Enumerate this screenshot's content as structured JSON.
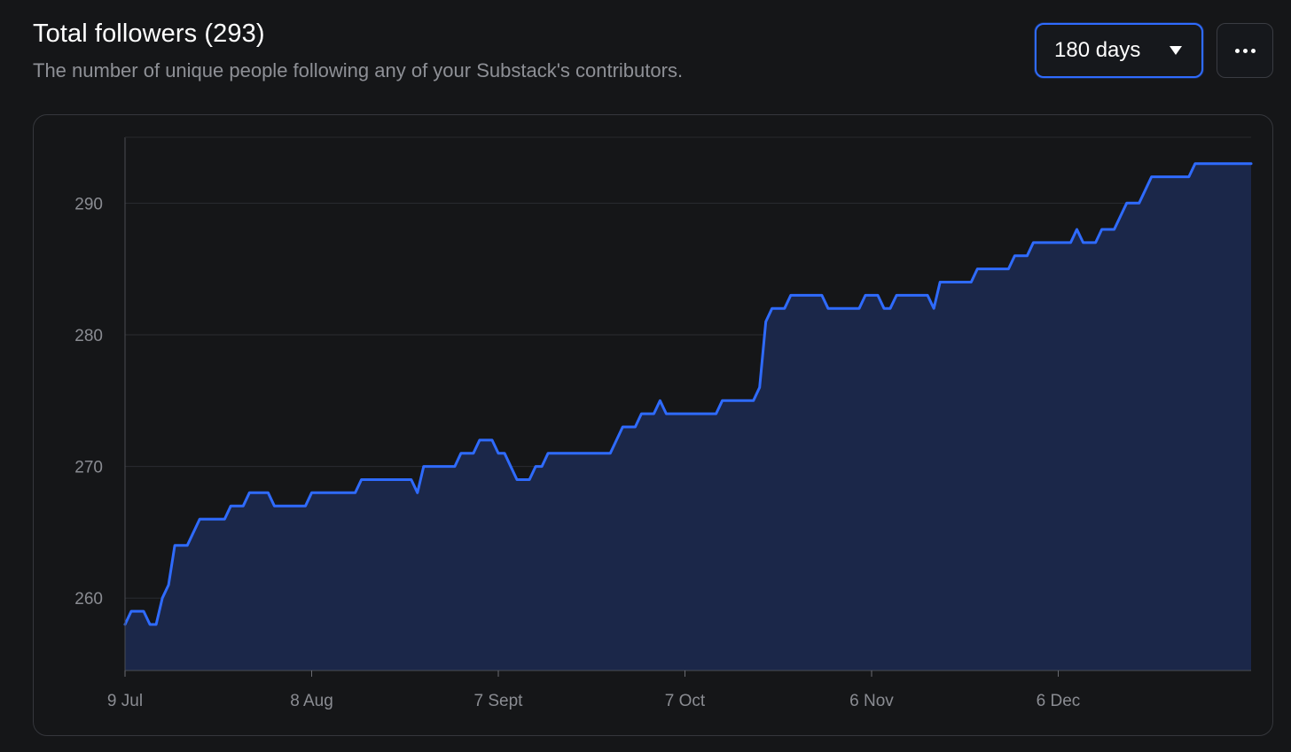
{
  "header": {
    "title": "Total followers (293)",
    "subtitle": "The number of unique people following any of your Substack's contributors."
  },
  "controls": {
    "range_label": "180 days",
    "range_icon": "chevron-down-icon",
    "more_icon": "more-horizontal-icon"
  },
  "colors": {
    "line": "#2f6bff",
    "area": "#1b2749",
    "grid": "#2a2c31",
    "background": "#151618"
  },
  "chart_data": {
    "type": "area",
    "title": "",
    "xlabel": "",
    "ylabel": "",
    "ylim": [
      254.5,
      295
    ],
    "yticks": [
      260,
      270,
      280,
      290
    ],
    "xlim": [
      "2024-07-09",
      "2025-01-06"
    ],
    "xticks": [
      {
        "date": "2024-07-09",
        "label": "9 Jul"
      },
      {
        "date": "2024-08-08",
        "label": "8 Aug"
      },
      {
        "date": "2024-09-07",
        "label": "7 Sept"
      },
      {
        "date": "2024-10-07",
        "label": "7 Oct"
      },
      {
        "date": "2024-11-06",
        "label": "6 Nov"
      },
      {
        "date": "2024-12-06",
        "label": "6 Dec"
      }
    ],
    "grid": true,
    "legend": "none",
    "series": [
      {
        "values": [
          [
            "2024-07-09",
            258
          ],
          [
            "2024-07-10",
            259
          ],
          [
            "2024-07-12",
            259
          ],
          [
            "2024-07-13",
            258
          ],
          [
            "2024-07-14",
            258
          ],
          [
            "2024-07-15",
            260
          ],
          [
            "2024-07-16",
            261
          ],
          [
            "2024-07-17",
            264
          ],
          [
            "2024-07-19",
            264
          ],
          [
            "2024-07-21",
            266
          ],
          [
            "2024-07-25",
            266
          ],
          [
            "2024-07-26",
            267
          ],
          [
            "2024-07-28",
            267
          ],
          [
            "2024-07-29",
            268
          ],
          [
            "2024-08-01",
            268
          ],
          [
            "2024-08-02",
            267
          ],
          [
            "2024-08-07",
            267
          ],
          [
            "2024-08-08",
            268
          ],
          [
            "2024-08-15",
            268
          ],
          [
            "2024-08-16",
            269
          ],
          [
            "2024-08-24",
            269
          ],
          [
            "2024-08-25",
            268
          ],
          [
            "2024-08-26",
            270
          ],
          [
            "2024-08-31",
            270
          ],
          [
            "2024-09-01",
            271
          ],
          [
            "2024-09-03",
            271
          ],
          [
            "2024-09-04",
            272
          ],
          [
            "2024-09-06",
            272
          ],
          [
            "2024-09-07",
            271
          ],
          [
            "2024-09-08",
            271
          ],
          [
            "2024-09-10",
            269
          ],
          [
            "2024-09-12",
            269
          ],
          [
            "2024-09-13",
            270
          ],
          [
            "2024-09-14",
            270
          ],
          [
            "2024-09-15",
            271
          ],
          [
            "2024-09-25",
            271
          ],
          [
            "2024-09-27",
            273
          ],
          [
            "2024-09-29",
            273
          ],
          [
            "2024-09-30",
            274
          ],
          [
            "2024-10-02",
            274
          ],
          [
            "2024-10-03",
            275
          ],
          [
            "2024-10-04",
            274
          ],
          [
            "2024-10-12",
            274
          ],
          [
            "2024-10-13",
            275
          ],
          [
            "2024-10-18",
            275
          ],
          [
            "2024-10-19",
            276
          ],
          [
            "2024-10-20",
            281
          ],
          [
            "2024-10-21",
            282
          ],
          [
            "2024-10-23",
            282
          ],
          [
            "2024-10-24",
            283
          ],
          [
            "2024-10-29",
            283
          ],
          [
            "2024-10-30",
            282
          ],
          [
            "2024-11-04",
            282
          ],
          [
            "2024-11-05",
            283
          ],
          [
            "2024-11-07",
            283
          ],
          [
            "2024-11-08",
            282
          ],
          [
            "2024-11-09",
            282
          ],
          [
            "2024-11-10",
            283
          ],
          [
            "2024-11-15",
            283
          ],
          [
            "2024-11-16",
            282
          ],
          [
            "2024-11-17",
            284
          ],
          [
            "2024-11-22",
            284
          ],
          [
            "2024-11-23",
            285
          ],
          [
            "2024-11-28",
            285
          ],
          [
            "2024-11-29",
            286
          ],
          [
            "2024-12-01",
            286
          ],
          [
            "2024-12-02",
            287
          ],
          [
            "2024-12-08",
            287
          ],
          [
            "2024-12-09",
            288
          ],
          [
            "2024-12-10",
            287
          ],
          [
            "2024-12-12",
            287
          ],
          [
            "2024-12-13",
            288
          ],
          [
            "2024-12-15",
            288
          ],
          [
            "2024-12-17",
            290
          ],
          [
            "2024-12-19",
            290
          ],
          [
            "2024-12-21",
            292
          ],
          [
            "2024-12-27",
            292
          ],
          [
            "2024-12-28",
            293
          ],
          [
            "2025-01-06",
            293
          ]
        ]
      }
    ]
  }
}
